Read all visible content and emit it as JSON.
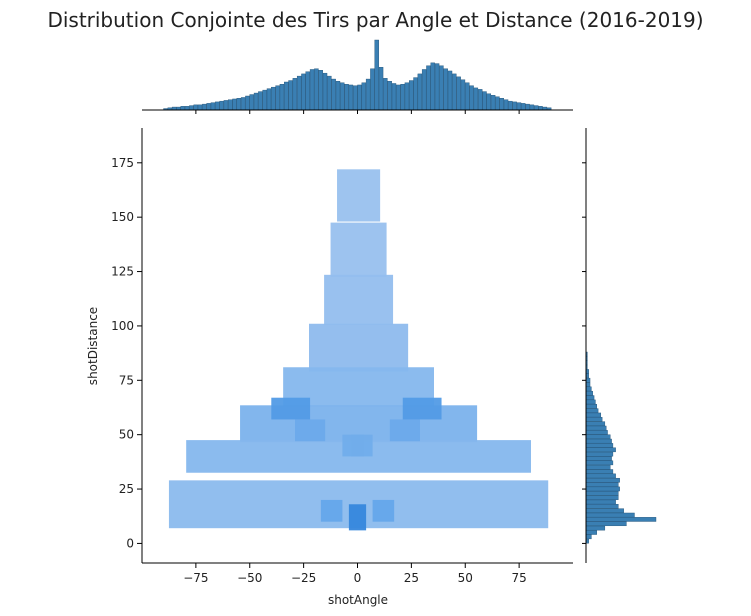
{
  "chart_data": {
    "type": "heatmap",
    "title": "Distribution Conjointe des Tirs par Angle et Distance (2016-2019)",
    "xlabel": "shotAngle",
    "ylabel": "shotDistance",
    "xlim": [
      -100,
      100
    ],
    "ylim": [
      -9,
      191
    ],
    "x_ticks": [
      -75,
      -50,
      -25,
      0,
      25,
      50,
      75
    ],
    "x_tick_labels": [
      "−75",
      "−50",
      "−25",
      "0",
      "25",
      "50",
      "75"
    ],
    "y_ticks": [
      0,
      25,
      50,
      75,
      100,
      125,
      150,
      175
    ],
    "y_tick_labels": [
      "0",
      "25",
      "50",
      "75",
      "100",
      "125",
      "150",
      "175"
    ],
    "grid": false,
    "colors": {
      "heat_light": "#a8c8ef",
      "heat_mid": "#5fa4ea",
      "heat_dark": "#1f77d4",
      "marginal_fill": "#3a7fb3",
      "marginal_edge": "#1f4f74"
    },
    "heatmap_cells": [
      {
        "x": 0.5,
        "y": 160,
        "w": 20,
        "h": 24,
        "intensity": 0.1
      },
      {
        "x": 0.5,
        "y": 135,
        "w": 26,
        "h": 25,
        "intensity": 0.11
      },
      {
        "x": 0.5,
        "y": 112,
        "w": 32,
        "h": 23,
        "intensity": 0.14
      },
      {
        "x": 0.5,
        "y": 90,
        "w": 46,
        "h": 22,
        "intensity": 0.18
      },
      {
        "x": 0.5,
        "y": 72,
        "w": 70,
        "h": 18,
        "intensity": 0.24
      },
      {
        "x": 0.5,
        "y": 55,
        "w": 110,
        "h": 17,
        "intensity": 0.31
      },
      {
        "x": 0.5,
        "y": 40,
        "w": 160,
        "h": 15,
        "intensity": 0.24
      },
      {
        "x": 0.5,
        "y": 18,
        "w": 176,
        "h": 22,
        "intensity": 0.2
      },
      {
        "x": -31,
        "y": 62,
        "w": 18,
        "h": 10,
        "intensity": 0.6
      },
      {
        "x": 30,
        "y": 62,
        "w": 18,
        "h": 10,
        "intensity": 0.6
      },
      {
        "x": -22,
        "y": 52,
        "w": 14,
        "h": 10,
        "intensity": 0.42
      },
      {
        "x": 22,
        "y": 52,
        "w": 14,
        "h": 10,
        "intensity": 0.42
      },
      {
        "x": 0,
        "y": 12,
        "w": 8,
        "h": 12,
        "intensity": 0.82
      },
      {
        "x": -12,
        "y": 15,
        "w": 10,
        "h": 10,
        "intensity": 0.46
      },
      {
        "x": 12,
        "y": 15,
        "w": 10,
        "h": 10,
        "intensity": 0.46
      },
      {
        "x": -2,
        "y": 45,
        "w": 10,
        "h": 10,
        "intensity": 0.38
      },
      {
        "x": 2,
        "y": 45,
        "w": 10,
        "h": 10,
        "intensity": 0.38
      }
    ],
    "x_marginal": {
      "bin_edges_start": -90,
      "bin_width": 2,
      "counts": [
        2,
        3,
        4,
        4,
        5,
        5,
        6,
        7,
        7,
        8,
        9,
        10,
        11,
        12,
        13,
        14,
        15,
        16,
        17,
        19,
        21,
        23,
        25,
        27,
        29,
        31,
        33,
        35,
        38,
        40,
        43,
        46,
        49,
        52,
        55,
        56,
        54,
        50,
        46,
        42,
        39,
        37,
        35,
        34,
        33,
        34,
        37,
        42,
        56,
        95,
        58,
        43,
        39,
        36,
        34,
        35,
        37,
        40,
        44,
        49,
        55,
        60,
        64,
        63,
        60,
        56,
        53,
        49,
        45,
        41,
        37,
        33,
        30,
        28,
        25,
        22,
        20,
        18,
        16,
        14,
        12,
        11,
        10,
        9,
        8,
        7,
        6,
        5,
        4,
        3
      ]
    },
    "y_marginal": {
      "bin_edges_start": 0,
      "bin_width": 2,
      "counts": [
        2,
        4,
        8,
        14,
        30,
        52,
        36,
        28,
        24,
        22,
        24,
        24,
        25,
        24,
        25,
        22,
        20,
        18,
        20,
        19,
        20,
        22,
        20,
        19,
        18,
        16,
        15,
        14,
        12,
        11,
        9,
        8,
        7,
        6,
        5,
        4,
        3,
        3,
        2,
        2,
        1,
        1,
        1,
        1,
        0,
        0,
        0,
        0,
        0,
        0,
        0,
        0,
        0,
        0,
        0,
        0,
        0,
        0,
        0,
        0
      ]
    }
  }
}
